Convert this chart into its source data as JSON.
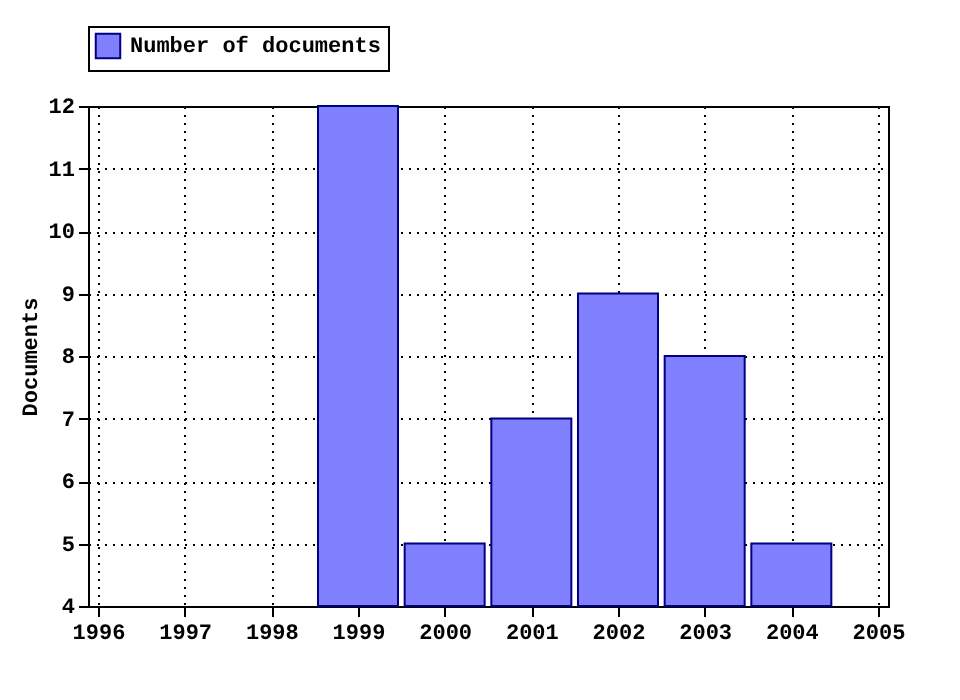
{
  "chart_data": {
    "type": "bar",
    "ylabel": "Documents",
    "x": [
      1999,
      2000,
      2001,
      2002,
      2003,
      2004
    ],
    "series": [
      {
        "name": "Number of documents",
        "color": "#8080ff",
        "values": [
          12,
          5,
          7,
          9,
          8,
          5
        ]
      }
    ],
    "xlim": [
      1996,
      2005
    ],
    "xticks": [
      1996,
      1997,
      1998,
      1999,
      2000,
      2001,
      2002,
      2003,
      2004,
      2005
    ],
    "ylim": [
      4,
      12
    ],
    "yticks": [
      4,
      5,
      6,
      7,
      8,
      9,
      10,
      11,
      12
    ],
    "grid": true,
    "legend": "top left"
  }
}
